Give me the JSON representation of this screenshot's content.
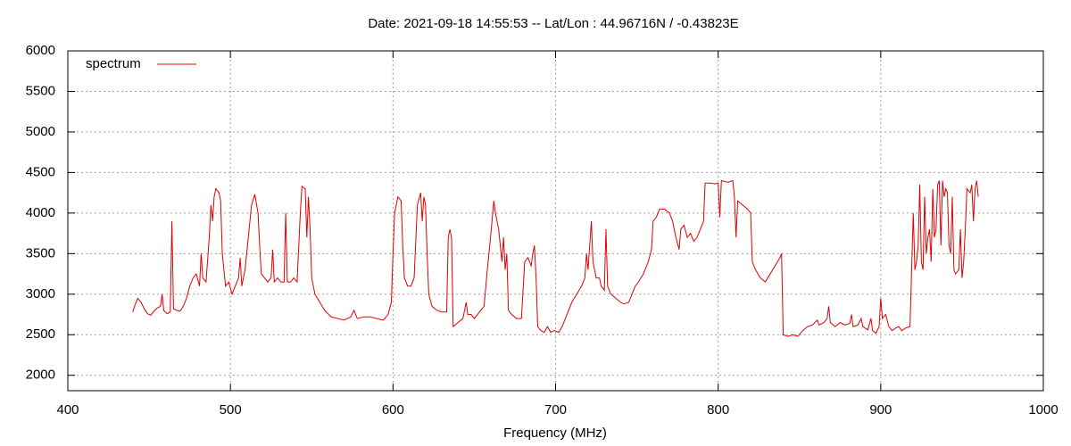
{
  "chart_data": {
    "type": "line",
    "title": "Date: 2021-09-18 14:55:53  --  Lat/Lon : 44.96716N / -0.43823E",
    "xlabel": "Frequency (MHz)",
    "xlim": [
      400,
      1000
    ],
    "xticks": [
      400,
      500,
      600,
      700,
      800,
      900,
      1000
    ],
    "ylim": [
      1810,
      6000
    ],
    "yticks": [
      2000,
      2500,
      3000,
      3500,
      4000,
      4500,
      5000,
      5500,
      6000
    ],
    "grid": true,
    "legend": "top left",
    "x": [
      440,
      441,
      443,
      445,
      447,
      449,
      451,
      453,
      455,
      457,
      458,
      459,
      461,
      463,
      464,
      465,
      467,
      469,
      471,
      473,
      475,
      477,
      479,
      481,
      482,
      483,
      485,
      487,
      488,
      489,
      490,
      491,
      493,
      494,
      495,
      497,
      499,
      501,
      503,
      505,
      506,
      507,
      509,
      511,
      513,
      515,
      517,
      518,
      519,
      521,
      523,
      525,
      526,
      527,
      529,
      531,
      533,
      534,
      535,
      537,
      539,
      541,
      543,
      544,
      546,
      547,
      548,
      549,
      550,
      552,
      555,
      558,
      562,
      566,
      570,
      574,
      576,
      578,
      582,
      586,
      590,
      594,
      597,
      599,
      600,
      601,
      603,
      605,
      606,
      607,
      609,
      611,
      613,
      615,
      617,
      618,
      619,
      620,
      621,
      622,
      624,
      627,
      630,
      633,
      634,
      635,
      636,
      637,
      640,
      643,
      645,
      646,
      648,
      650,
      652,
      654,
      656,
      658,
      660,
      662,
      663,
      665,
      667,
      668,
      669,
      670,
      671,
      673,
      676,
      679,
      681,
      683,
      685,
      686,
      687,
      688,
      689,
      691,
      693,
      695,
      697,
      699,
      702,
      704,
      707,
      710,
      713,
      716,
      718,
      719,
      720,
      721,
      722,
      723,
      725,
      727,
      728,
      730,
      731,
      732,
      734,
      737,
      740,
      742,
      745,
      747,
      749,
      751,
      754,
      757,
      759,
      760,
      762,
      764,
      767,
      770,
      772,
      774,
      776,
      777,
      779,
      781,
      783,
      785,
      787,
      789,
      791,
      792,
      795,
      798,
      800,
      801,
      802,
      806,
      809,
      810,
      811,
      812,
      815,
      818,
      820,
      821,
      823,
      826,
      829,
      832,
      835,
      838,
      839,
      840,
      843,
      846,
      849,
      852,
      855,
      858,
      861,
      862,
      865,
      867,
      868,
      869,
      872,
      875,
      878,
      881,
      882,
      883,
      886,
      888,
      889,
      892,
      894,
      895,
      897,
      899,
      900,
      901,
      903,
      905,
      907,
      909,
      911,
      913,
      915,
      918,
      919,
      920,
      921,
      922,
      923,
      924,
      925,
      926,
      927,
      928,
      929,
      930,
      931,
      932,
      933,
      934,
      935,
      936,
      937,
      938,
      939,
      940,
      941,
      942,
      943,
      944,
      945,
      946,
      948,
      949,
      950,
      951,
      952,
      953,
      955,
      956,
      957,
      958,
      959,
      960
    ],
    "series": [
      {
        "name": "spectrum",
        "color": "#e00000",
        "values": [
          2780,
          2850,
          2950,
          2900,
          2820,
          2760,
          2740,
          2790,
          2830,
          2850,
          3000,
          2800,
          2760,
          2780,
          3900,
          2820,
          2800,
          2790,
          2850,
          2950,
          3100,
          3200,
          3250,
          3100,
          3500,
          3200,
          3150,
          3700,
          4100,
          3900,
          4200,
          4300,
          4250,
          4150,
          3500,
          3100,
          3150,
          3000,
          3100,
          3200,
          3450,
          3100,
          3300,
          3700,
          4100,
          4230,
          4000,
          3600,
          3250,
          3200,
          3150,
          3200,
          3550,
          3150,
          3200,
          3150,
          3150,
          4000,
          3150,
          3150,
          3200,
          3150,
          4000,
          4330,
          4300,
          3700,
          4200,
          3800,
          3200,
          3000,
          2900,
          2800,
          2720,
          2700,
          2680,
          2720,
          2800,
          2700,
          2720,
          2720,
          2700,
          2680,
          2750,
          2900,
          3500,
          4000,
          4200,
          4150,
          3600,
          3200,
          3100,
          3100,
          3200,
          4100,
          4250,
          3900,
          4200,
          4100,
          3500,
          3000,
          2850,
          2800,
          2780,
          2780,
          3700,
          3800,
          3700,
          2600,
          2650,
          2700,
          2900,
          2750,
          2750,
          2700,
          2750,
          2800,
          2850,
          3300,
          3700,
          4150,
          4000,
          3800,
          3400,
          3700,
          3300,
          3500,
          2800,
          2750,
          2700,
          2700,
          3400,
          3450,
          3350,
          3500,
          3600,
          3200,
          2600,
          2550,
          2530,
          2600,
          2530,
          2550,
          2530,
          2600,
          2750,
          2900,
          3000,
          3100,
          3200,
          3500,
          3300,
          3600,
          3900,
          3400,
          3200,
          3200,
          3100,
          3050,
          3800,
          3100,
          3000,
          2950,
          2900,
          2880,
          2900,
          3000,
          3100,
          3150,
          3250,
          3400,
          3550,
          3900,
          3950,
          4050,
          4050,
          4000,
          3900,
          3700,
          3550,
          3800,
          3850,
          3700,
          3750,
          3650,
          3700,
          3800,
          3900,
          4370,
          4370,
          4360,
          4370,
          3950,
          4400,
          4380,
          4400,
          4200,
          3700,
          4150,
          4100,
          4050,
          4000,
          3400,
          3300,
          3200,
          3150,
          3250,
          3350,
          3450,
          3500,
          2500,
          2480,
          2500,
          2480,
          2550,
          2600,
          2620,
          2680,
          2620,
          2650,
          2700,
          2850,
          2650,
          2600,
          2650,
          2620,
          2640,
          2750,
          2600,
          2620,
          2700,
          2600,
          2560,
          2700,
          2550,
          2520,
          2600,
          2950,
          2700,
          2750,
          2600,
          2550,
          2580,
          2600,
          2550,
          2580,
          2600,
          3300,
          4000,
          3300,
          3400,
          3600,
          4350,
          3400,
          3300,
          4200,
          3500,
          3700,
          3800,
          3400,
          4300,
          3700,
          3800,
          4350,
          4400,
          3600,
          4400,
          4200,
          4300,
          4250,
          3600,
          3500,
          4200,
          3300,
          3250,
          3300,
          3800,
          3200,
          3400,
          3800,
          4300,
          4250,
          4350,
          3900,
          4300,
          4400,
          4200
        ]
      }
    ]
  }
}
